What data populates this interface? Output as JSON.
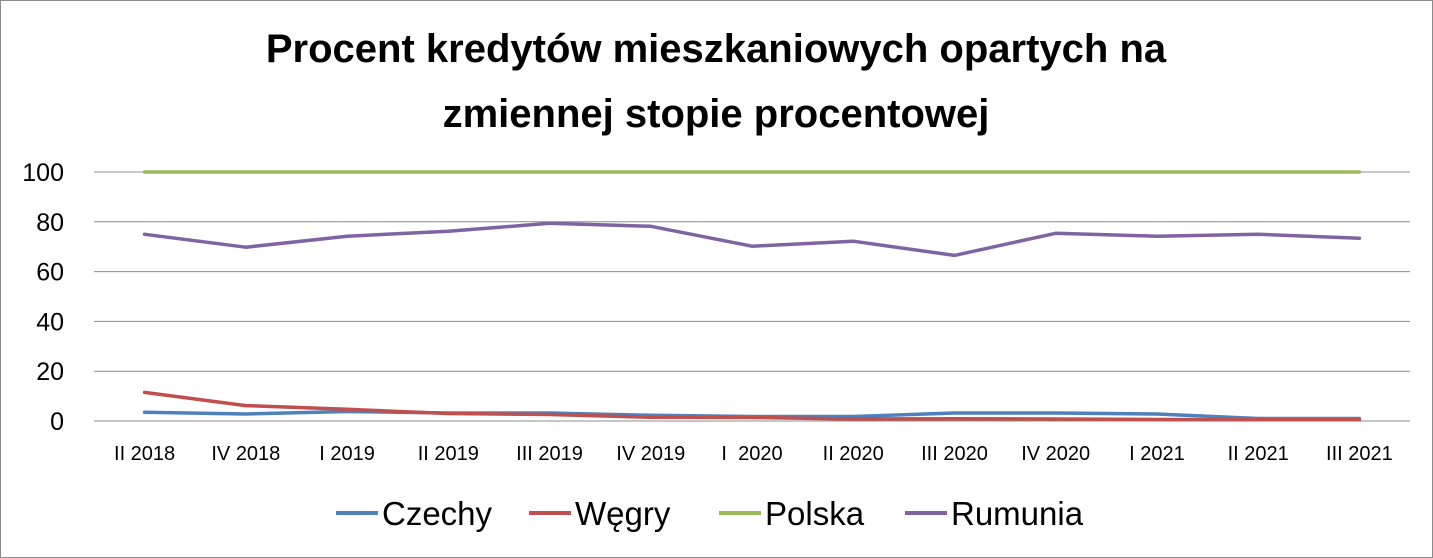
{
  "chart_data": {
    "type": "line",
    "title_lines": [
      "Procent kredytów mieszkaniowych opartych na",
      "zmiennej stopie procentowej"
    ],
    "xlabel": "",
    "ylabel": "",
    "ylim": [
      0,
      100
    ],
    "yticks": [
      0,
      20,
      40,
      60,
      80,
      100
    ],
    "grid": true,
    "legend_position": "bottom",
    "categories": [
      "II 2018",
      "IV 2018",
      "I 2019",
      "II 2019",
      "III 2019",
      "IV 2019",
      "I  2020",
      "II 2020",
      "III 2020",
      "IV 2020",
      "I 2021",
      "II 2021",
      "III 2021"
    ],
    "series": [
      {
        "name": "Czechy",
        "color": "#4f81bd",
        "values": [
          3.5,
          2.8,
          3.8,
          3.2,
          3.2,
          2.3,
          1.8,
          1.8,
          3.2,
          3.2,
          2.8,
          1.0,
          1.0
        ]
      },
      {
        "name": "Węgry",
        "color": "#c0504d",
        "values": [
          11.5,
          6.2,
          4.7,
          3.0,
          2.6,
          1.5,
          1.4,
          0.8,
          0.9,
          0.8,
          0.6,
          0.5,
          0.5
        ]
      },
      {
        "name": "Polska",
        "color": "#9bbb59",
        "values": [
          100,
          100,
          100,
          100,
          100,
          100,
          100,
          100,
          100,
          100,
          100,
          100,
          100
        ]
      },
      {
        "name": "Rumunia",
        "color": "#8064a2",
        "values": [
          75,
          69.8,
          74.2,
          76.2,
          79.4,
          78.2,
          70.2,
          72.2,
          66.5,
          75.4,
          74.2,
          75.0,
          73.4
        ]
      }
    ]
  }
}
